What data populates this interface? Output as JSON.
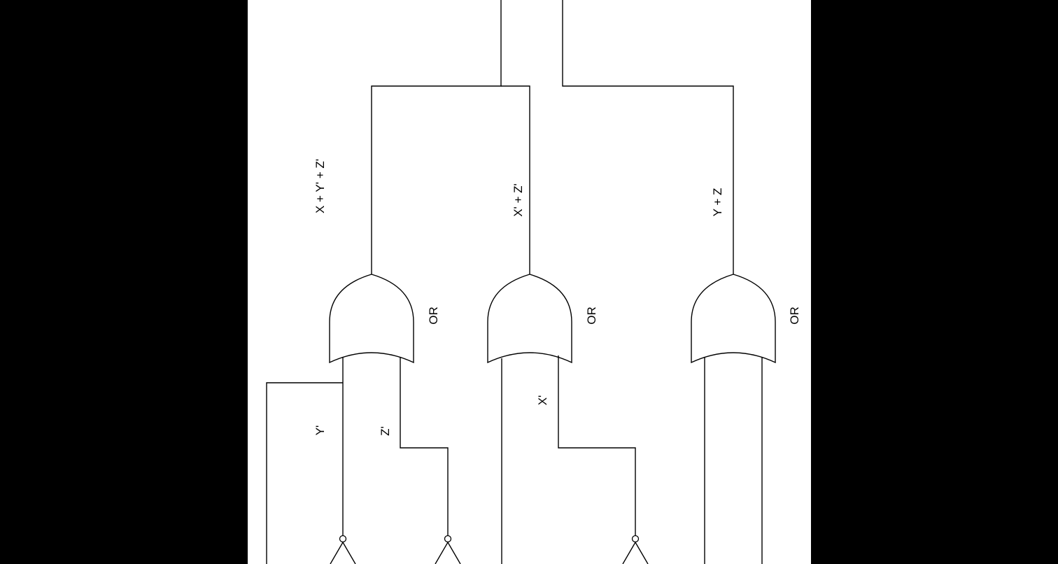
{
  "colors": {
    "frame": "#000000",
    "sheet": "#ffffff",
    "ink": "#000000"
  },
  "gates": {
    "or1": {
      "label": "OR"
    },
    "or2": {
      "label": "OR"
    },
    "or3": {
      "label": "OR"
    }
  },
  "signals": {
    "out1": "X + Y' + Z'",
    "out2": "X' + Z'",
    "out3": "Y + Z",
    "y_not": "Y'",
    "z_not": "Z'",
    "x_not": "X'"
  }
}
